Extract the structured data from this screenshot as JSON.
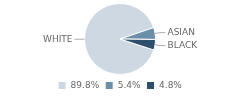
{
  "chart_data": {
    "type": "pie",
    "categories": [
      "WHITE",
      "ASIAN",
      "BLACK"
    ],
    "values": [
      89.8,
      5.4,
      4.8
    ],
    "value_labels": [
      "89.8%",
      "5.4%",
      "4.8%"
    ],
    "colors": [
      "#cdd8e3",
      "#6b8fa8",
      "#2d4f6b"
    ],
    "legend": "bottom"
  }
}
